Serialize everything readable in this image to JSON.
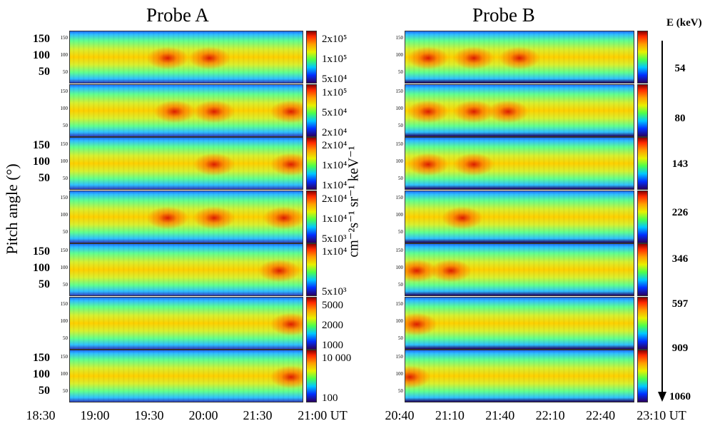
{
  "chart_data": [
    {
      "type": "heatmap",
      "title": "Probe A",
      "ylabel": "Pitch angle (°)",
      "colorbar_label": "cm⁻²s⁻¹ sr⁻¹ keV⁻¹",
      "x_ticks": [
        "18:30",
        "19:00",
        "19:30",
        "20:00",
        "21:30",
        "21:00 UT"
      ],
      "y_ticks": [
        150,
        100,
        50
      ],
      "panels": [
        {
          "colorbar_ticks": [
            "2x10⁵",
            "1x10⁵",
            "5x10⁴"
          ],
          "intensity_peaks": [
            0.42,
            0.6
          ]
        },
        {
          "colorbar_ticks": [
            "1x10⁵",
            "5x10⁴",
            "2x10⁴"
          ],
          "intensity_peaks": [
            0.45,
            0.62,
            0.95
          ]
        },
        {
          "colorbar_ticks": [
            "2x10⁴",
            "1x10⁴",
            "1x10⁴"
          ],
          "intensity_peaks": [
            0.62,
            0.95
          ]
        },
        {
          "colorbar_ticks": [
            "2x10⁴",
            "1x10⁴",
            "5x10³"
          ],
          "intensity_peaks": [
            0.42,
            0.62,
            0.92
          ]
        },
        {
          "colorbar_ticks": [
            "1x10⁴",
            "5x10³"
          ],
          "intensity_peaks": [
            0.9
          ]
        },
        {
          "colorbar_ticks": [
            "5000",
            "2000",
            "1000"
          ],
          "intensity_peaks": [
            0.95
          ]
        },
        {
          "colorbar_ticks": [
            "10 000",
            "100"
          ],
          "intensity_peaks": [
            0.95
          ]
        }
      ]
    },
    {
      "type": "heatmap",
      "title": "Probe B",
      "x_ticks": [
        "20:40",
        "21:10",
        "21:40",
        "22:10",
        "22:40",
        "23:10 UT"
      ],
      "energy_axis_label": "E (keV)",
      "energies": [
        "54",
        "80",
        "143",
        "226",
        "346",
        "597",
        "909",
        "1060"
      ],
      "panels": [
        {
          "intensity_peaks": [
            0.1,
            0.3,
            0.5
          ]
        },
        {
          "intensity_peaks": [
            0.1,
            0.3,
            0.45
          ]
        },
        {
          "intensity_peaks": [
            0.1,
            0.3
          ]
        },
        {
          "intensity_peaks": [
            0.25
          ]
        },
        {
          "intensity_peaks": [
            0.05,
            0.2
          ]
        },
        {
          "intensity_peaks": [
            0.05
          ]
        },
        {
          "intensity_peaks": [
            0.02
          ]
        }
      ]
    }
  ]
}
